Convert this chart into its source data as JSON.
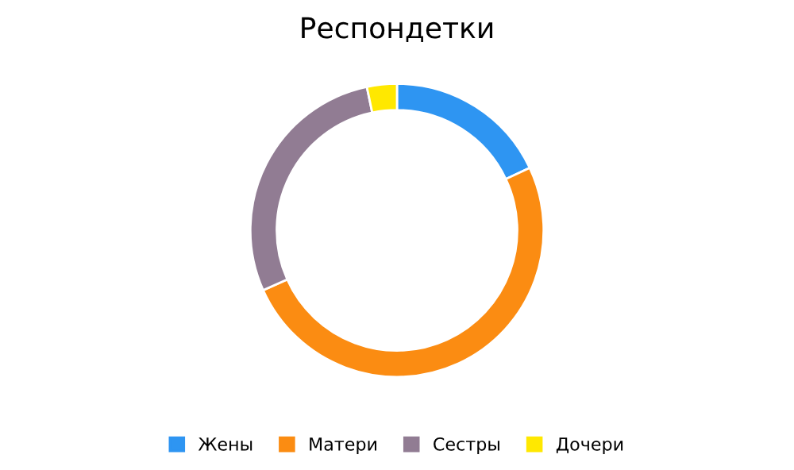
{
  "chart_data": {
    "type": "donut",
    "title": "Респондетки",
    "categories": [
      "Жены",
      "Матери",
      "Сестры",
      "Дочери"
    ],
    "values": [
      18,
      50.3,
      28.4,
      3.3
    ],
    "colors": [
      "#2e95f2",
      "#fb8c12",
      "#917c93",
      "#ffe800"
    ],
    "legend": "bottom"
  }
}
